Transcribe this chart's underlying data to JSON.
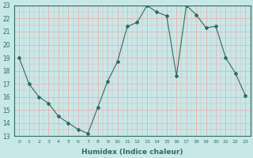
{
  "x": [
    0,
    1,
    2,
    3,
    4,
    5,
    6,
    7,
    8,
    9,
    10,
    11,
    12,
    13,
    14,
    15,
    16,
    17,
    18,
    19,
    20,
    21,
    22,
    23
  ],
  "y": [
    19,
    17,
    16,
    15.5,
    14.5,
    14,
    13.5,
    13.2,
    15.2,
    17.2,
    18.7,
    21.4,
    21.7,
    23.0,
    22.5,
    22.2,
    17.6,
    23.0,
    22.3,
    21.3,
    21.4,
    19.0,
    17.8,
    16.1
  ],
  "xlabel": "Humidex (Indice chaleur)",
  "xlim": [
    -0.5,
    23.5
  ],
  "ylim": [
    13,
    23
  ],
  "yticks": [
    13,
    14,
    15,
    16,
    17,
    18,
    19,
    20,
    21,
    22,
    23
  ],
  "xticks": [
    0,
    1,
    2,
    3,
    4,
    5,
    6,
    7,
    8,
    9,
    10,
    11,
    12,
    13,
    14,
    15,
    16,
    17,
    18,
    19,
    20,
    21,
    22,
    23
  ],
  "line_color": "#2d6b5e",
  "marker": "D",
  "marker_size": 2,
  "bg_color": "#c8e8e8",
  "grid_color": "#e8b0b0",
  "fig_bg": "#c8e8e8",
  "tick_color": "#2d6b5e",
  "label_color": "#2d6b5e",
  "spine_color": "#2d6b5e"
}
